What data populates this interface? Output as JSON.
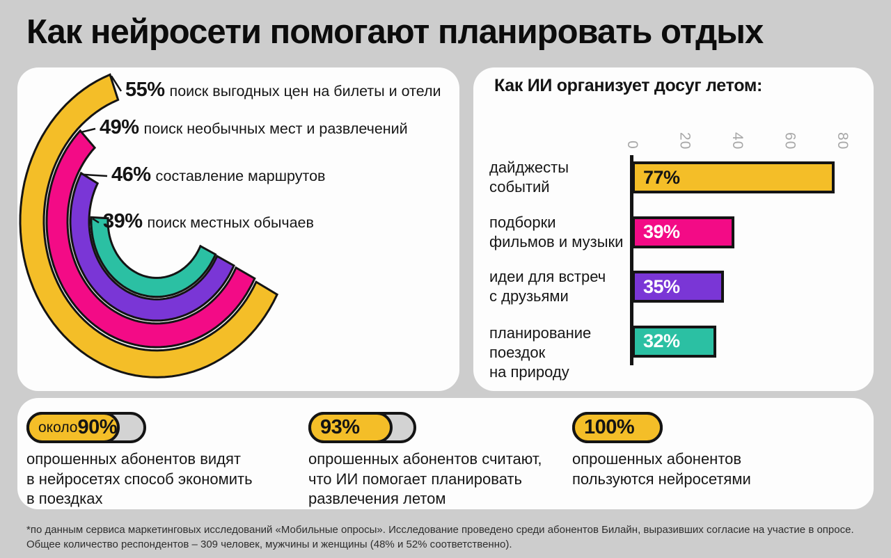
{
  "page": {
    "title": "Как нейросети помогают планировать отдых",
    "background": "#cdcdcd"
  },
  "colors": {
    "yellow": "#f4be28",
    "pink": "#f30b86",
    "purple": "#7a36d6",
    "teal": "#2bc0a3",
    "outline": "#141414",
    "pill_track": "#d3d3d3",
    "tick_gray": "#a8a8a8"
  },
  "chart_data": [
    {
      "type": "bar",
      "variant": "radial-arc",
      "note": "concentric arc chart, arc length proportional to value",
      "categories": [
        "поиск выгодных цен на билеты и отели",
        "поиск необычных мест и развлечений",
        "составление маршрутов",
        "поиск местных обычаев"
      ],
      "values": [
        55,
        49,
        46,
        39
      ],
      "value_labels": [
        "55%",
        "49%",
        "46%",
        "39%"
      ],
      "colors": [
        "#f4be28",
        "#f30b86",
        "#7a36d6",
        "#2bc0a3"
      ]
    },
    {
      "type": "bar",
      "orientation": "horizontal",
      "title": "Как ИИ организует досуг летом:",
      "x_ticks": [
        "0",
        "20",
        "40",
        "60",
        "80"
      ],
      "xlim": [
        0,
        80
      ],
      "grid": false,
      "categories": [
        "дайджесты\nсобытий",
        "подборки\nфильмов и музыки",
        "идеи для встреч\nс друзьями",
        "планирование\nпоездок\nна природу"
      ],
      "values": [
        77,
        39,
        35,
        32
      ],
      "value_labels": [
        "77%",
        "39%",
        "35%",
        "32%"
      ],
      "value_label_colors": [
        "#141414",
        "#ffffff",
        "#ffffff",
        "#ffffff"
      ],
      "colors": [
        "#f4be28",
        "#f30b86",
        "#7a36d6",
        "#2bc0a3"
      ]
    }
  ],
  "stats": [
    {
      "prefix": "около ",
      "value": "90%",
      "fill_pct": 82,
      "text": "опрошенных абонентов видят\nв нейросетях способ экономить\nв поездках"
    },
    {
      "prefix": "",
      "value": "93%",
      "fill_pct": 82,
      "text": "опрошенных абонентов считают,\nчто ИИ помогает планировать\nразвлечения летом"
    },
    {
      "prefix": "",
      "value": "100%",
      "fill_pct": 100,
      "text": "опрошенных абонентов\nпользуются нейросетями"
    }
  ],
  "footnote": "*по данным сервиса маркетинговых исследований «Мобильные опросы». Исследование проведено среди абонентов Билайн, выразивших согласие на участие в опросе.\nОбщее количество респондентов – 309 человек, мужчины и женщины (48% и 52% соответственно)."
}
